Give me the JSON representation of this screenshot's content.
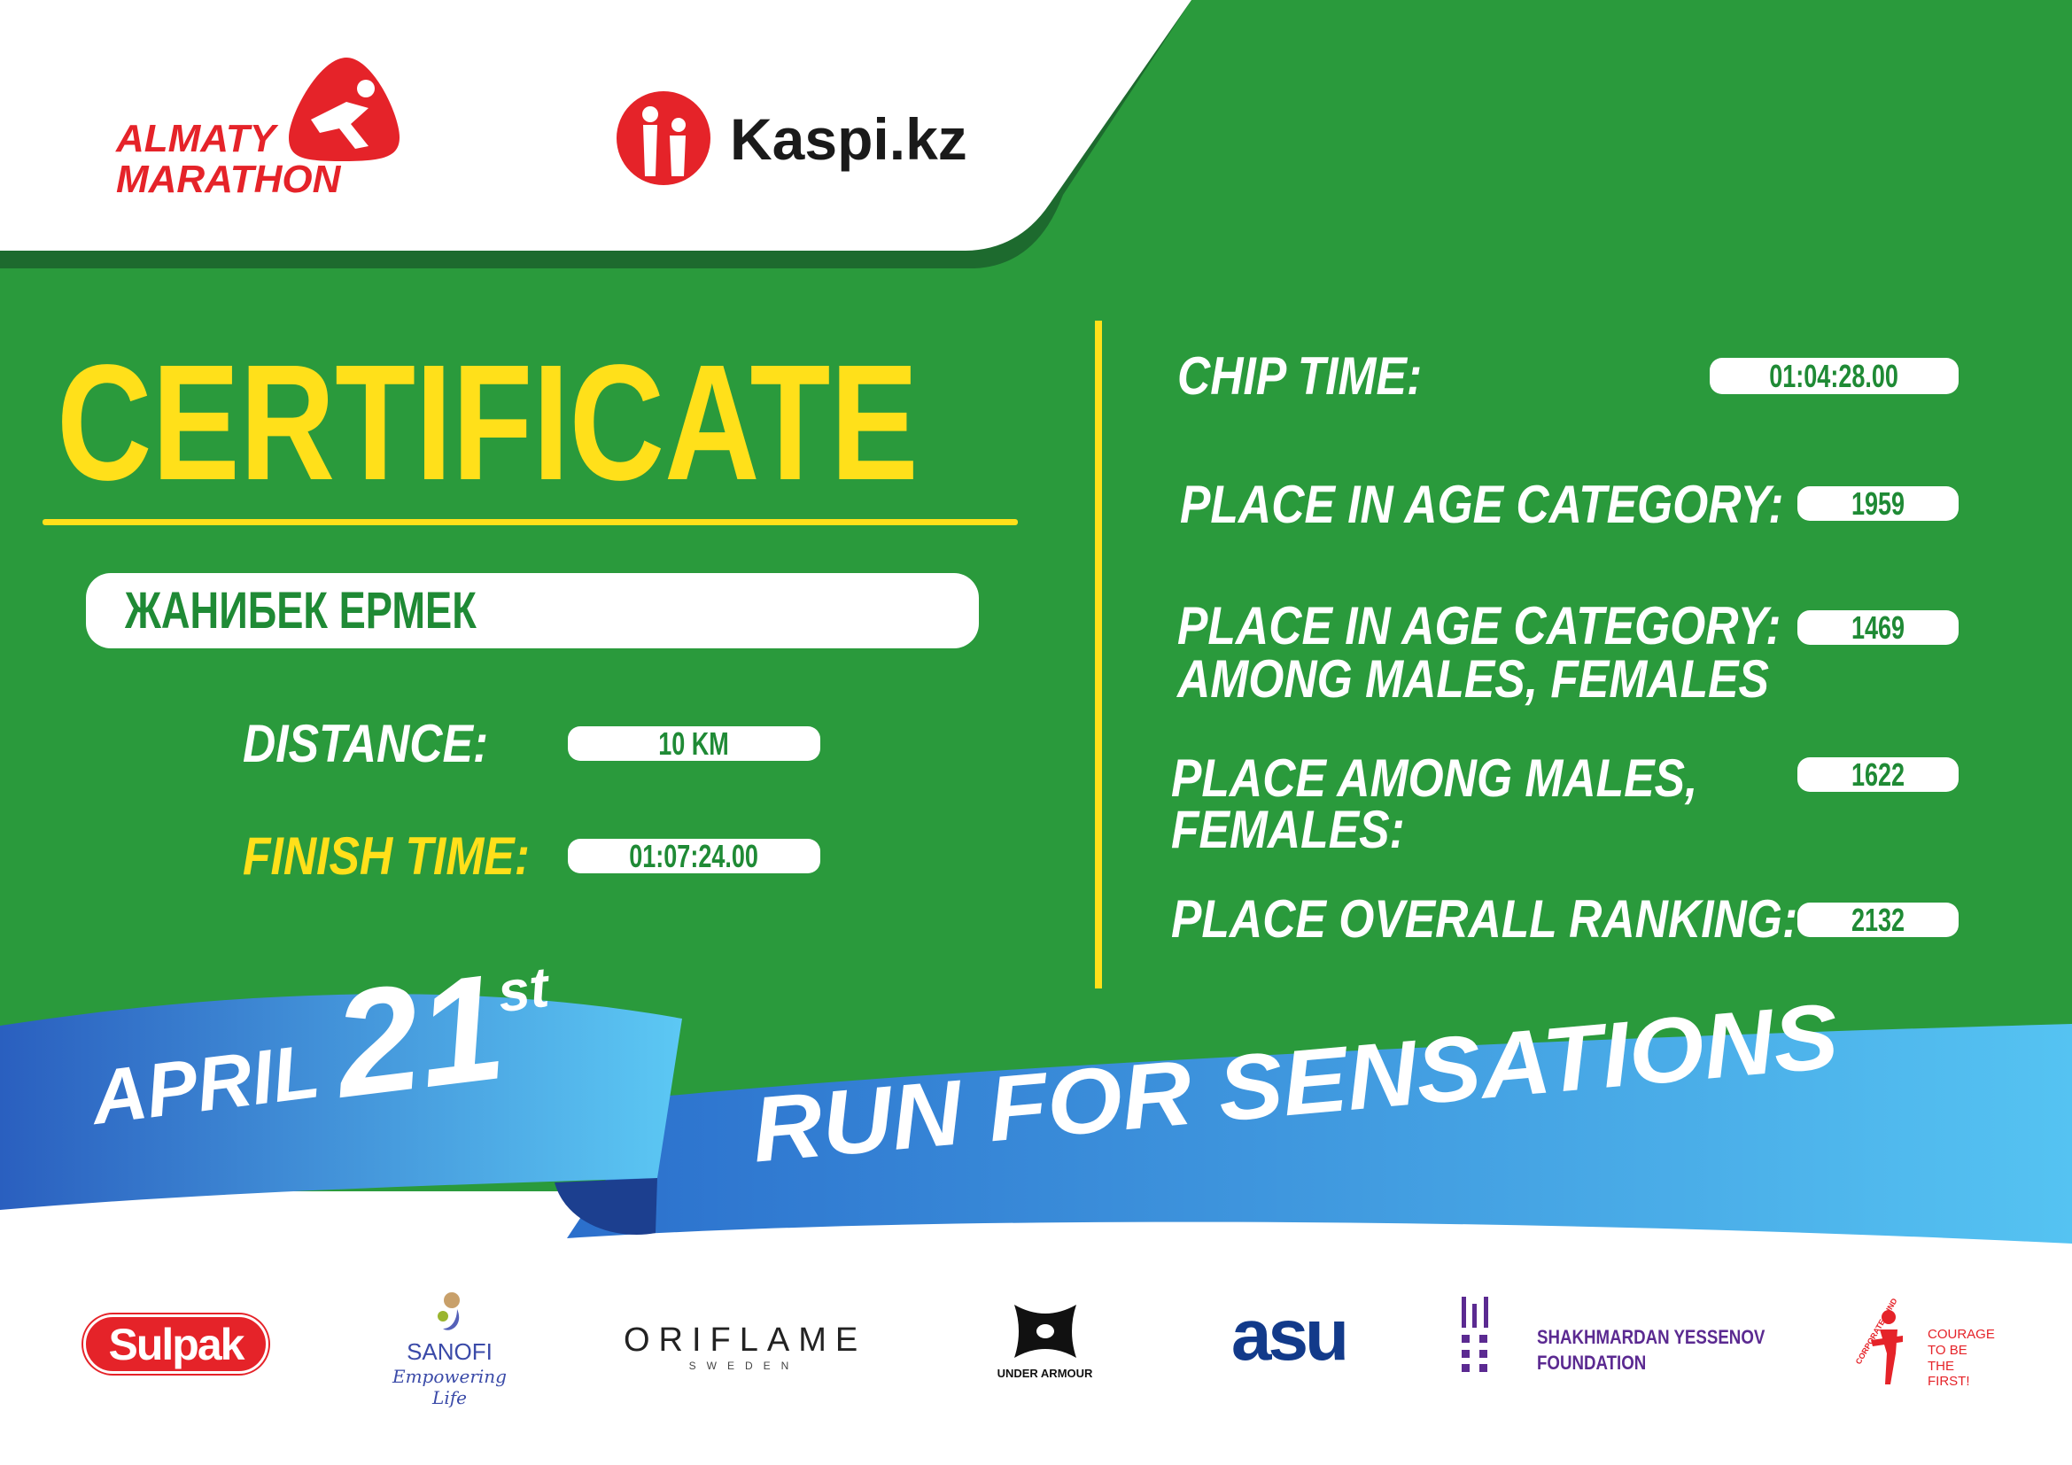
{
  "colors": {
    "green": "#2a9a3c",
    "dark_green": "#1d6a2e",
    "yellow": "#ffe01a",
    "red": "#e52329",
    "blue": "#2f7fd6",
    "light_blue": "#4fbff0"
  },
  "header": {
    "event_logo": {
      "line1": "ALMATY",
      "line2": "MARATHON"
    },
    "sponsor_logo": "Kaspi.kz"
  },
  "title": "CERTIFICATE",
  "name": "ЖАНИБЕК ЕРМЕК",
  "left": {
    "distance_label": "DISTANCE:",
    "distance_value": "10 KM",
    "finish_label": "FINISH TIME:",
    "finish_value": "01:07:24.00"
  },
  "right": {
    "chip_label": "CHIP TIME:",
    "chip_value": "01:04:28.00",
    "age_label": "PLACE IN AGE CATEGORY:",
    "age_value": "1959",
    "age_gender_label_1": "PLACE IN AGE CATEGORY:",
    "age_gender_label_2": "AMONG MALES, FEMALES",
    "age_gender_value": "1469",
    "gender_label_1": "PLACE AMONG MALES,",
    "gender_label_2": "FEMALES:",
    "gender_value": "1622",
    "overall_label": "PLACE OVERALL RANKING:",
    "overall_value": "2132"
  },
  "ribbon": {
    "month": "APRIL",
    "day": "21",
    "suffix": "st",
    "slogan": "RUN FOR SENSATIONS"
  },
  "sponsors": {
    "sulpak": "Sulpak",
    "sanofi": "SANOFI",
    "sanofi_tag": "Empowering Life",
    "oriflame": "ORIFLAME",
    "oriflame_sub": "SWEDEN",
    "under_armour": "UNDER ARMOUR",
    "asu": "asu",
    "yessenov_1": "SHAKHMARDAN YESSENOV",
    "yessenov_2": "FOUNDATION",
    "courage_arc": "CORPORATE FUND",
    "courage_1": "COURAGE",
    "courage_2": "TO BE",
    "courage_3": "THE FIRST!"
  }
}
